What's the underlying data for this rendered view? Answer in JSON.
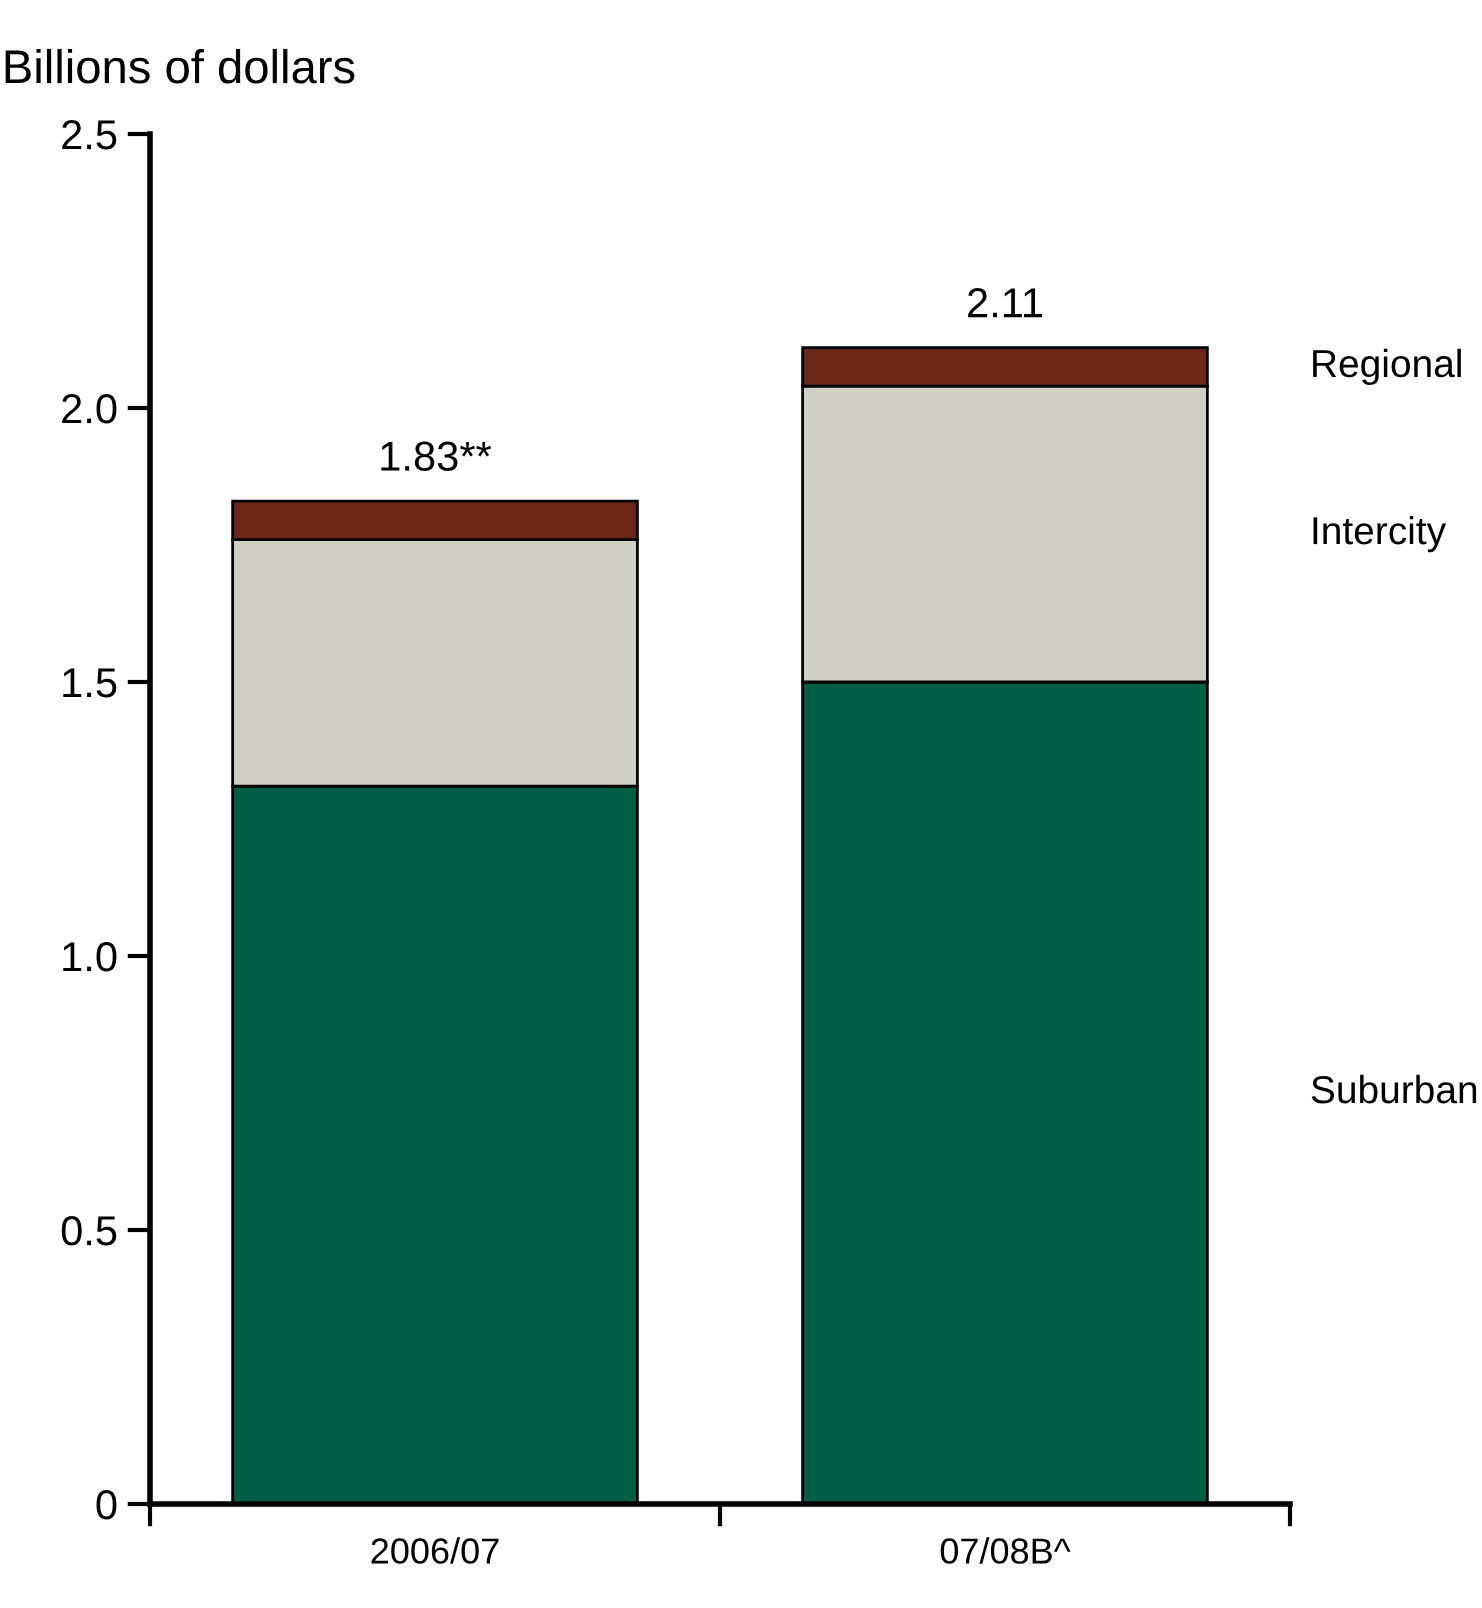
{
  "chart_data": {
    "type": "bar",
    "stacked": true,
    "ylabel": "Billions of dollars",
    "categories": [
      "2006/07",
      "07/08B^"
    ],
    "series": [
      {
        "name": "Suburban",
        "color": "#005e44",
        "values": [
          1.31,
          1.5
        ]
      },
      {
        "name": "Intercity",
        "color": "#d0cfc4",
        "values": [
          0.45,
          0.54
        ]
      },
      {
        "name": "Regional",
        "color": "#6b2717",
        "values": [
          0.07,
          0.07
        ]
      }
    ],
    "totals": [
      "1.83**",
      "2.11"
    ],
    "ylim": [
      0,
      2.5
    ],
    "yticks": [
      {
        "value": 0,
        "label": "0"
      },
      {
        "value": 0.5,
        "label": "0.5"
      },
      {
        "value": 1,
        "label": "1.0"
      },
      {
        "value": 1.5,
        "label": "1.5"
      },
      {
        "value": 2,
        "label": "2.0"
      },
      {
        "value": 2.5,
        "label": "2.5"
      }
    ],
    "grid": false,
    "legend": false
  }
}
